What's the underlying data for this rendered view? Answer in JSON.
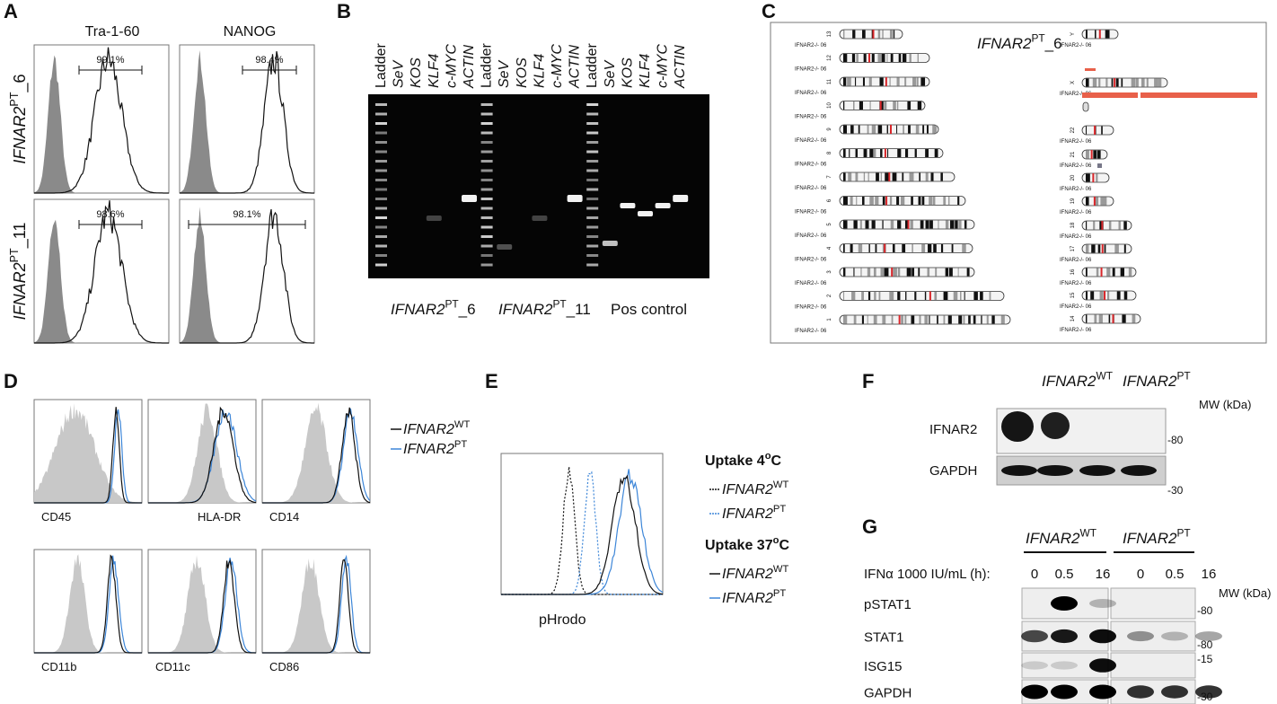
{
  "A": {
    "letter": "A",
    "columns": [
      "Tra-1-60",
      "NANOG"
    ],
    "rows": [
      {
        "label": {
          "gene": "IFNAR2",
          "sup": "PT",
          "suffix": "_6"
        },
        "gates": [
          "99.1%",
          "98.4%"
        ]
      },
      {
        "label": {
          "gene": "IFNAR2",
          "sup": "PT",
          "suffix": "_11"
        },
        "gates": [
          "98.6%",
          "98.1%"
        ]
      }
    ]
  },
  "B": {
    "letter": "B",
    "lanes": [
      "Ladder",
      "SeV",
      "KOS",
      "KLF4",
      "c-MYC",
      "ACTIN",
      "Ladder",
      "SeV",
      "KOS",
      "KLF4",
      "c-MYC",
      "ACTIN",
      "Ladder",
      "SeV",
      "KOS",
      "KLF4",
      "c-MYC",
      "ACTIN"
    ],
    "groups": [
      {
        "gene": "IFNAR2",
        "sup": "PT",
        "suffix": "_6"
      },
      {
        "gene": "IFNAR2",
        "sup": "PT",
        "suffix": "_11"
      }
    ],
    "pos_control": "Pos control"
  },
  "C": {
    "letter": "C",
    "title": {
      "gene": "IFNAR2",
      "sup": "PT",
      "suffix": "_6"
    },
    "sample_label": "IFNAR2-/- 06",
    "left_chromosomes": [
      "13",
      "12",
      "11",
      "10",
      "9",
      "8",
      "7",
      "6",
      "5",
      "4",
      "3",
      "2",
      "1"
    ],
    "right_chromosomes": [
      "Y",
      "X",
      "22",
      "21",
      "20",
      "19",
      "18",
      "17",
      "16",
      "15",
      "14"
    ]
  },
  "D": {
    "letter": "D",
    "legend": [
      {
        "gene": "IFNAR2",
        "sup": "WT"
      },
      {
        "gene": "IFNAR2",
        "sup": "PT"
      }
    ],
    "markers": [
      "CD45",
      "HLA-DR",
      "CD14",
      "CD11b",
      "CD11c",
      "CD86"
    ]
  },
  "E": {
    "letter": "E",
    "x_label": "pHrodo",
    "groups": [
      {
        "title": {
          "text": "Uptake 4",
          "sup": "o",
          "suffix": "C"
        },
        "entries": [
          {
            "gene": "IFNAR2",
            "sup": "WT"
          },
          {
            "gene": "IFNAR2",
            "sup": "PT"
          }
        ]
      },
      {
        "title": {
          "text": "Uptake 37",
          "sup": "o",
          "suffix": "C"
        },
        "entries": [
          {
            "gene": "IFNAR2",
            "sup": "WT"
          },
          {
            "gene": "IFNAR2",
            "sup": "PT"
          }
        ]
      }
    ]
  },
  "F": {
    "letter": "F",
    "columns": [
      {
        "gene": "IFNAR2",
        "sup": "WT"
      },
      {
        "gene": "IFNAR2",
        "sup": "PT"
      }
    ],
    "mw": "MW (kDa)",
    "rows": [
      "IFNAR2",
      "GAPDH"
    ],
    "markers": [
      "-80",
      "-30"
    ]
  },
  "G": {
    "letter": "G",
    "columns": [
      {
        "gene": "IFNAR2",
        "sup": "WT"
      },
      {
        "gene": "IFNAR2",
        "sup": "PT"
      }
    ],
    "treatment": "IFNα 1000 IU/mL (h):",
    "times": [
      0,
      0.5,
      16,
      0,
      0.5,
      16
    ],
    "mw": "MW (kDa)",
    "rows": [
      "pSTAT1",
      "STAT1",
      "ISG15",
      "GAPDH"
    ],
    "markers": [
      "-80",
      "-80",
      "-15",
      "-30"
    ]
  }
}
